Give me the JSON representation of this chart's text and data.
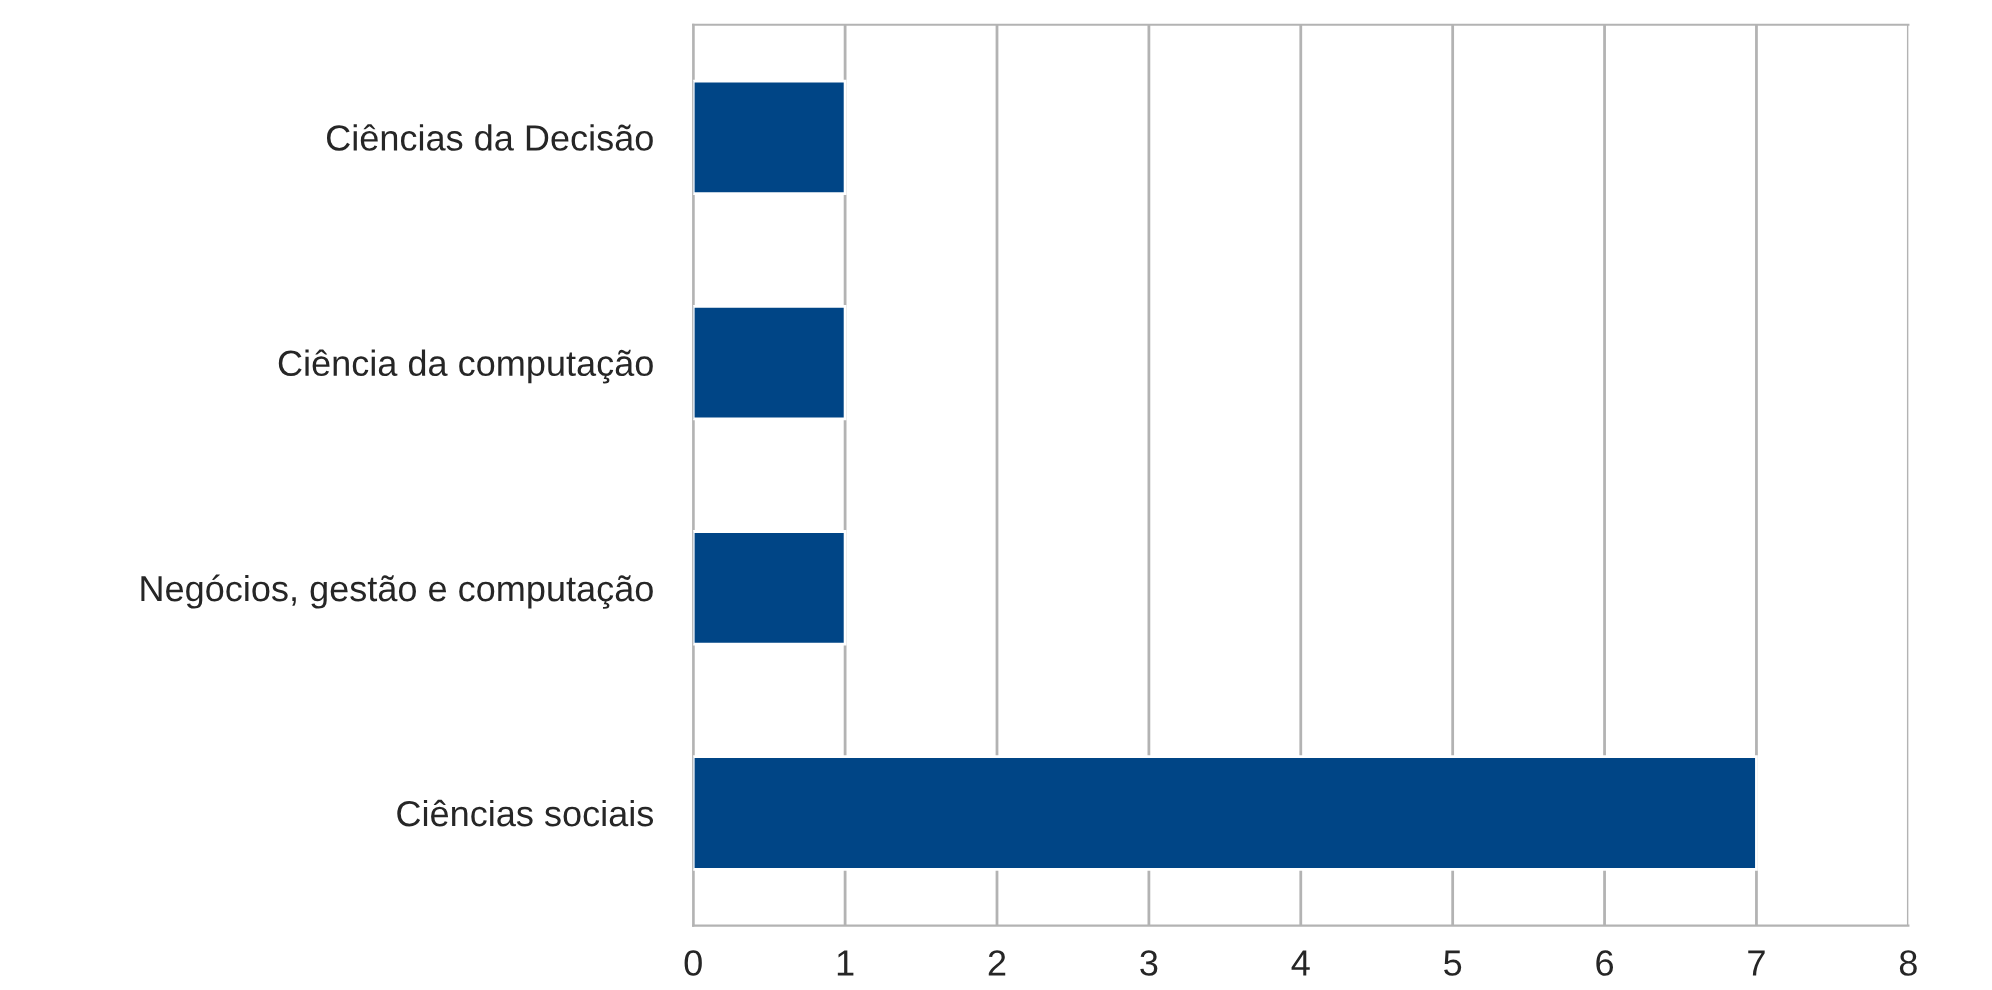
{
  "chart_data": {
    "type": "bar",
    "orientation": "horizontal",
    "categories": [
      "Ciências da Decisão",
      "Ciência da computação",
      "Negócios, gestão e computação",
      "Ciências sociais"
    ],
    "values": [
      1,
      1,
      1,
      7
    ],
    "color": "#004586",
    "xlim": [
      0,
      8
    ],
    "xticks": [
      0,
      1,
      2,
      3,
      4,
      5,
      6,
      7,
      8
    ],
    "grid": "x",
    "legend": false
  }
}
